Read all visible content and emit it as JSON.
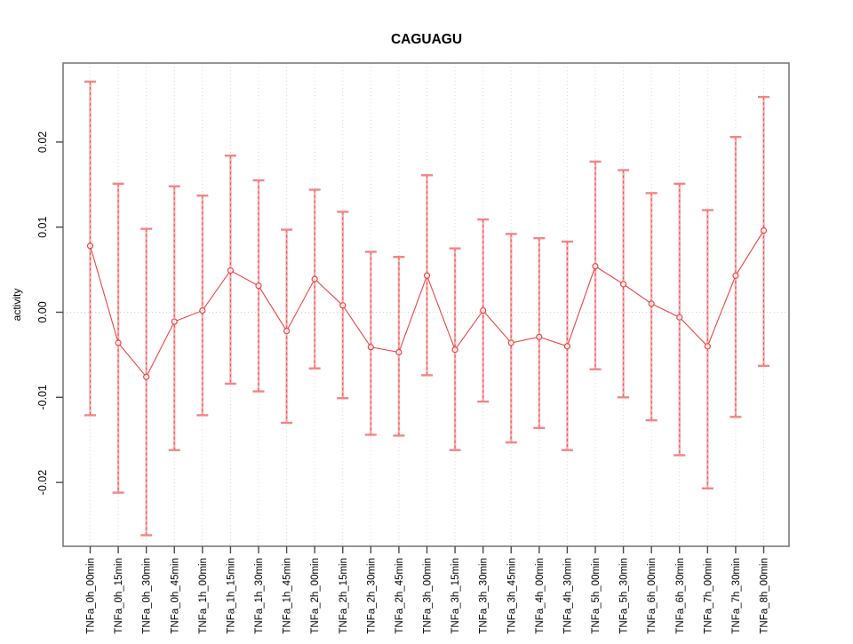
{
  "page": {
    "background": "#ffffff"
  },
  "chart_data": {
    "type": "line",
    "title": "CAGUAGU",
    "xlabel": "",
    "ylabel": "activity",
    "legend": "none",
    "ylim": [
      -0.0275,
      0.0293
    ],
    "yticks": [
      -0.02,
      -0.01,
      0,
      0.01,
      0.02
    ],
    "grid": "light dotted vertical gridline at every x category; light dotted horizontal line at y=0",
    "colors": {
      "series_line": "#ee4444",
      "error_bar_fill": "#f7aeae",
      "error_bar_dash": "#ee4444",
      "error_bar_cap": "#f28585",
      "grid_line": "#d9d9d9",
      "zero_line": "#cfcfcf",
      "axis_box": "#7a7a7a",
      "tick_mark": "#4a4a4a",
      "text": "#000000"
    },
    "categories": [
      "TNFa_0h_00min",
      "TNFa_0h_15min",
      "TNFa_0h_30min",
      "TNFa_0h_45min",
      "TNFa_1h_00min",
      "TNFa_1h_15min",
      "TNFa_1h_30min",
      "TNFa_1h_45min",
      "TNFa_2h_00min",
      "TNFa_2h_15min",
      "TNFa_2h_30min",
      "TNFa_2h_45min",
      "TNFa_3h_00min",
      "TNFa_3h_15min",
      "TNFa_3h_30min",
      "TNFa_3h_45min",
      "TNFa_4h_00min",
      "TNFa_4h_30min",
      "TNFa_5h_00min",
      "TNFa_5h_30min",
      "TNFa_6h_00min",
      "TNFa_6h_30min",
      "TNFa_7h_00min",
      "TNFa_7h_30min",
      "TNFa_8h_00min"
    ],
    "series": [
      {
        "name": "activity",
        "marker": "open-circle",
        "values": [
          0.0078,
          -0.0036,
          -0.0076,
          -0.0011,
          0.0002,
          0.0049,
          0.0031,
          -0.0022,
          0.0039,
          0.0008,
          -0.0041,
          -0.0047,
          0.0043,
          -0.0044,
          0.0002,
          -0.0036,
          -0.0029,
          -0.004,
          0.0054,
          0.0033,
          0.001,
          -0.0006,
          -0.004,
          0.0043,
          0.0096
        ],
        "error_upper": [
          0.0271,
          0.0151,
          0.0098,
          0.0148,
          0.0137,
          0.0184,
          0.0155,
          0.0097,
          0.0144,
          0.0118,
          0.0071,
          0.0065,
          0.0161,
          0.0075,
          0.0109,
          0.0092,
          0.0087,
          0.0083,
          0.0177,
          0.0167,
          0.014,
          0.0151,
          0.012,
          0.0206,
          0.0253
        ],
        "error_lower": [
          -0.0121,
          -0.0212,
          -0.0262,
          -0.0162,
          -0.0121,
          -0.0084,
          -0.0093,
          -0.013,
          -0.0066,
          -0.0101,
          -0.0144,
          -0.0145,
          -0.0074,
          -0.0162,
          -0.0105,
          -0.0153,
          -0.0136,
          -0.0162,
          -0.0067,
          -0.01,
          -0.0127,
          -0.0168,
          -0.0207,
          -0.0123,
          -0.0063
        ]
      }
    ]
  }
}
